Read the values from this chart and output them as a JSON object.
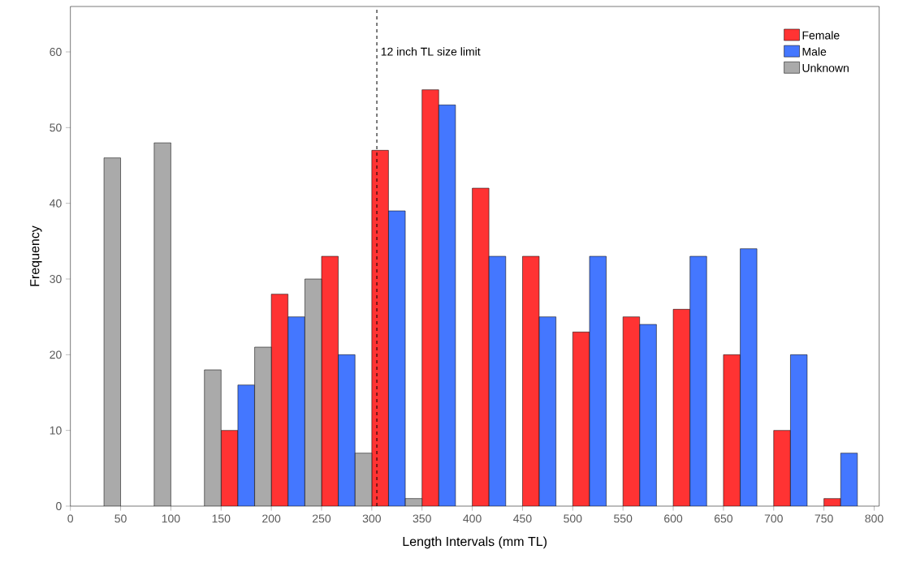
{
  "chart_data": {
    "type": "bar",
    "xlabel": "Length Intervals (mm TL)",
    "ylabel": "Frequency",
    "series": [
      {
        "name": "Female",
        "color": "#ff3333",
        "x": [
          158.3,
          208.3,
          258.3,
          308.3,
          358.3,
          408.3,
          458.3,
          508.3,
          558.3,
          608.3,
          658.3,
          708.3,
          758.3
        ],
        "values": [
          10,
          28,
          33,
          47,
          55,
          42,
          33,
          23,
          25,
          26,
          20,
          10,
          1
        ]
      },
      {
        "name": "Male",
        "color": "#4477ff",
        "x": [
          175,
          225,
          275,
          325,
          375,
          425,
          475,
          525,
          575,
          625,
          675,
          725,
          775
        ],
        "values": [
          16,
          25,
          20,
          39,
          53,
          33,
          25,
          33,
          24,
          33,
          34,
          20,
          7
        ]
      },
      {
        "name": "Unknown",
        "color": "#aaaaaa",
        "x": [
          41.7,
          91.7,
          141.7,
          191.7,
          241.7,
          291.7,
          341.7
        ],
        "values": [
          46,
          48,
          18,
          21,
          30,
          7,
          1
        ]
      }
    ],
    "xlim": [
      0,
      805
    ],
    "ylim": [
      0,
      66
    ],
    "xticks": [
      0,
      50,
      100,
      150,
      200,
      250,
      300,
      350,
      400,
      450,
      500,
      550,
      600,
      650,
      700,
      750,
      800
    ],
    "yticks": [
      0,
      10,
      20,
      30,
      40,
      50,
      60
    ],
    "ref_lines": [
      {
        "axis": "x",
        "value": 305,
        "label": "12 inch TL size limit",
        "line_style": "dashed"
      }
    ],
    "grid": false,
    "legend": "top right"
  }
}
